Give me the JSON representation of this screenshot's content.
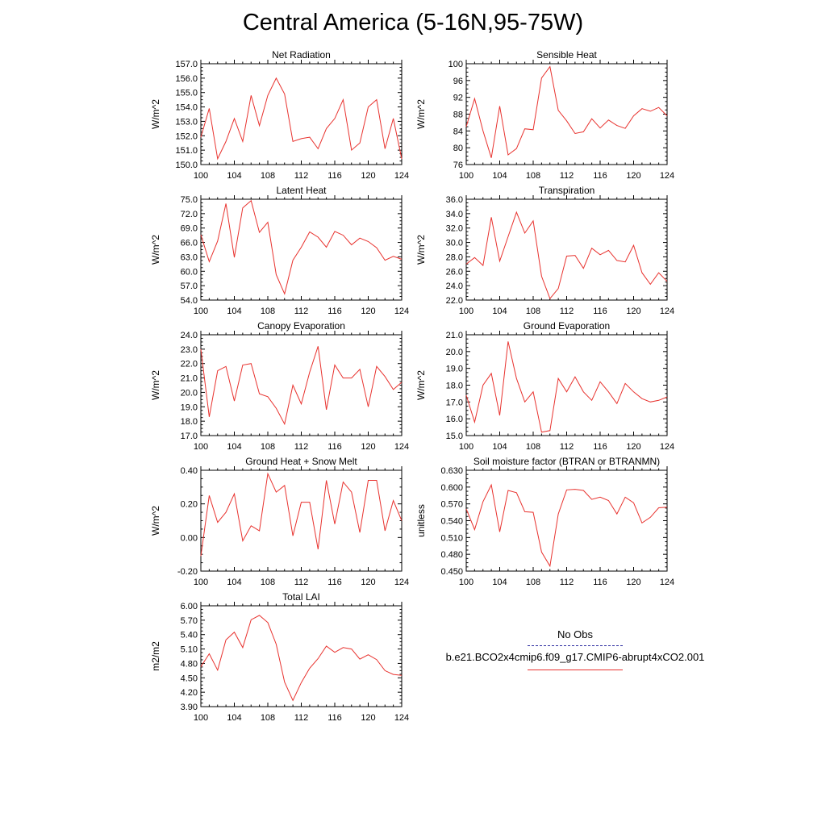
{
  "page": {
    "title": "Central America (5-16N,95-75W)"
  },
  "legend": {
    "obs_label": "No Obs",
    "case_label": "b.e21.BCO2x4cmip6.f09_g17.CMIP6-abrupt4xCO2.001",
    "case_color": "#e8322e",
    "obs_color": "#2a2aa0"
  },
  "chart_data": [
    {
      "type": "line",
      "title": "Net Radiation",
      "ylabel": "W/m^2",
      "xlabel": "",
      "xlim": [
        100,
        124
      ],
      "ylim": [
        150,
        157
      ],
      "xticks": [
        "100",
        "104",
        "108",
        "112",
        "116",
        "120",
        "124"
      ],
      "yticks": [
        "150.0",
        "151.0",
        "152.0",
        "153.0",
        "154.0",
        "155.0",
        "156.0",
        "157.0"
      ],
      "series": [
        {
          "name": "b.e21.BCO2x4cmip6.f09_g17.CMIP6-abrupt4xCO2.001",
          "x": [
            100,
            101,
            102,
            103,
            104,
            105,
            106,
            107,
            108,
            109,
            110,
            111,
            112,
            113,
            114,
            115,
            116,
            117,
            118,
            119,
            120,
            121,
            122,
            123,
            124
          ],
          "values": [
            151.9,
            153.9,
            150.4,
            151.6,
            153.2,
            151.6,
            154.8,
            152.7,
            154.8,
            156.0,
            154.9,
            151.6,
            151.8,
            151.9,
            151.1,
            152.5,
            153.2,
            154.5,
            151.0,
            151.5,
            154.0,
            154.5,
            151.1,
            153.2,
            150.4
          ]
        }
      ]
    },
    {
      "type": "line",
      "title": "Sensible Heat",
      "ylabel": "W/m^2",
      "xlabel": "",
      "xlim": [
        100,
        124
      ],
      "ylim": [
        76,
        100
      ],
      "xticks": [
        "100",
        "104",
        "108",
        "112",
        "116",
        "120",
        "124"
      ],
      "yticks": [
        "76",
        "80",
        "84",
        "88",
        "92",
        "96",
        "100"
      ],
      "series": [
        {
          "name": "b.e21.BCO2x4cmip6.f09_g17.CMIP6-abrupt4xCO2.001",
          "x": [
            100,
            101,
            102,
            103,
            104,
            105,
            106,
            107,
            108,
            109,
            110,
            111,
            112,
            113,
            114,
            115,
            116,
            117,
            118,
            119,
            120,
            121,
            122,
            123,
            124
          ],
          "values": [
            85.0,
            91.7,
            84.0,
            77.6,
            89.9,
            78.3,
            79.8,
            84.5,
            84.3,
            96.6,
            99.3,
            88.9,
            86.4,
            83.4,
            83.8,
            86.9,
            84.7,
            86.6,
            85.3,
            84.6,
            87.6,
            89.3,
            88.7,
            89.6,
            87.6
          ]
        }
      ]
    },
    {
      "type": "line",
      "title": "Latent Heat",
      "ylabel": "W/m^2",
      "xlabel": "",
      "xlim": [
        100,
        124
      ],
      "ylim": [
        54,
        75
      ],
      "xticks": [
        "100",
        "104",
        "108",
        "112",
        "116",
        "120",
        "124"
      ],
      "yticks": [
        "54.0",
        "57.0",
        "60.0",
        "63.0",
        "66.0",
        "69.0",
        "72.0",
        "75.0"
      ],
      "series": [
        {
          "name": "b.e21.BCO2x4cmip6.f09_g17.CMIP6-abrupt4xCO2.001",
          "x": [
            100,
            101,
            102,
            103,
            104,
            105,
            106,
            107,
            108,
            109,
            110,
            111,
            112,
            113,
            114,
            115,
            116,
            117,
            118,
            119,
            120,
            121,
            122,
            123,
            124
          ],
          "values": [
            67.6,
            62.0,
            66.3,
            74.1,
            62.9,
            73.2,
            74.7,
            68.1,
            70.2,
            59.3,
            55.3,
            62.3,
            65.0,
            68.2,
            67.1,
            65.0,
            68.3,
            67.5,
            65.5,
            66.9,
            66.2,
            64.9,
            62.3,
            63.1,
            62.5
          ]
        }
      ]
    },
    {
      "type": "line",
      "title": "Transpiration",
      "ylabel": "W/m^2",
      "xlabel": "",
      "xlim": [
        100,
        124
      ],
      "ylim": [
        22,
        36
      ],
      "xticks": [
        "100",
        "104",
        "108",
        "112",
        "116",
        "120",
        "124"
      ],
      "yticks": [
        "22.0",
        "24.0",
        "26.0",
        "28.0",
        "30.0",
        "32.0",
        "34.0",
        "36.0"
      ],
      "series": [
        {
          "name": "b.e21.BCO2x4cmip6.f09_g17.CMIP6-abrupt4xCO2.001",
          "x": [
            100,
            101,
            102,
            103,
            104,
            105,
            106,
            107,
            108,
            109,
            110,
            111,
            112,
            113,
            114,
            115,
            116,
            117,
            118,
            119,
            120,
            121,
            122,
            123,
            124
          ],
          "values": [
            27.0,
            27.9,
            26.8,
            33.5,
            27.4,
            30.8,
            34.2,
            31.3,
            33.0,
            25.3,
            22.2,
            23.6,
            28.1,
            28.2,
            26.4,
            29.2,
            28.3,
            28.9,
            27.5,
            27.3,
            29.6,
            25.8,
            24.2,
            25.8,
            24.6
          ]
        }
      ]
    },
    {
      "type": "line",
      "title": "Canopy Evaporation",
      "ylabel": "W/m^2",
      "xlabel": "",
      "xlim": [
        100,
        124
      ],
      "ylim": [
        17,
        24
      ],
      "xticks": [
        "100",
        "104",
        "108",
        "112",
        "116",
        "120",
        "124"
      ],
      "yticks": [
        "17.0",
        "18.0",
        "19.0",
        "20.0",
        "21.0",
        "22.0",
        "23.0",
        "24.0"
      ],
      "series": [
        {
          "name": "b.e21.BCO2x4cmip6.f09_g17.CMIP6-abrupt4xCO2.001",
          "x": [
            100,
            101,
            102,
            103,
            104,
            105,
            106,
            107,
            108,
            109,
            110,
            111,
            112,
            113,
            114,
            115,
            116,
            117,
            118,
            119,
            120,
            121,
            122,
            123,
            124
          ],
          "values": [
            23.0,
            18.3,
            21.5,
            21.8,
            19.4,
            21.9,
            22.0,
            19.9,
            19.7,
            18.9,
            17.8,
            20.5,
            19.2,
            21.4,
            23.2,
            18.8,
            21.9,
            21.0,
            21.0,
            21.6,
            19.0,
            21.8,
            21.1,
            20.2,
            20.7
          ]
        }
      ]
    },
    {
      "type": "line",
      "title": "Ground Evaporation",
      "ylabel": "W/m^2",
      "xlabel": "",
      "xlim": [
        100,
        124
      ],
      "ylim": [
        15,
        21
      ],
      "xticks": [
        "100",
        "104",
        "108",
        "112",
        "116",
        "120",
        "124"
      ],
      "yticks": [
        "15.0",
        "16.0",
        "17.0",
        "18.0",
        "19.0",
        "20.0",
        "21.0"
      ],
      "series": [
        {
          "name": "b.e21.BCO2x4cmip6.f09_g17.CMIP6-abrupt4xCO2.001",
          "x": [
            100,
            101,
            102,
            103,
            104,
            105,
            106,
            107,
            108,
            109,
            110,
            111,
            112,
            113,
            114,
            115,
            116,
            117,
            118,
            119,
            120,
            121,
            122,
            123,
            124
          ],
          "values": [
            17.4,
            15.8,
            18.0,
            18.7,
            16.2,
            20.6,
            18.4,
            17.0,
            17.6,
            15.2,
            15.3,
            18.4,
            17.6,
            18.5,
            17.6,
            17.1,
            18.2,
            17.6,
            16.9,
            18.1,
            17.6,
            17.2,
            17.0,
            17.1,
            17.3
          ]
        }
      ]
    },
    {
      "type": "line",
      "title": "Ground Heat + Snow Melt",
      "ylabel": "W/m^2",
      "xlabel": "",
      "xlim": [
        100,
        124
      ],
      "ylim": [
        -0.2,
        0.4
      ],
      "xticks": [
        "100",
        "104",
        "108",
        "112",
        "116",
        "120",
        "124"
      ],
      "yticks": [
        "-0.20",
        "0.00",
        "0.20",
        "0.40"
      ],
      "series": [
        {
          "name": "b.e21.BCO2x4cmip6.f09_g17.CMIP6-abrupt4xCO2.001",
          "x": [
            100,
            101,
            102,
            103,
            104,
            105,
            106,
            107,
            108,
            109,
            110,
            111,
            112,
            113,
            114,
            115,
            116,
            117,
            118,
            119,
            120,
            121,
            122,
            123,
            124
          ],
          "values": [
            -0.11,
            0.25,
            0.09,
            0.15,
            0.26,
            -0.02,
            0.07,
            0.04,
            0.38,
            0.27,
            0.31,
            0.01,
            0.21,
            0.21,
            -0.07,
            0.34,
            0.08,
            0.33,
            0.27,
            0.03,
            0.34,
            0.34,
            0.04,
            0.22,
            0.1
          ]
        }
      ]
    },
    {
      "type": "line",
      "title": "Soil moisture factor (BTRAN or BTRANMN)",
      "ylabel": "unitless",
      "xlabel": "",
      "xlim": [
        100,
        124
      ],
      "ylim": [
        0.45,
        0.63
      ],
      "xticks": [
        "100",
        "104",
        "108",
        "112",
        "116",
        "120",
        "124"
      ],
      "yticks": [
        "0.450",
        "0.480",
        "0.510",
        "0.540",
        "0.570",
        "0.600",
        "0.630"
      ],
      "series": [
        {
          "name": "b.e21.BCO2x4cmip6.f09_g17.CMIP6-abrupt4xCO2.001",
          "x": [
            100,
            101,
            102,
            103,
            104,
            105,
            106,
            107,
            108,
            109,
            110,
            111,
            112,
            113,
            114,
            115,
            116,
            117,
            118,
            119,
            120,
            121,
            122,
            123,
            124
          ],
          "values": [
            0.561,
            0.524,
            0.574,
            0.604,
            0.52,
            0.594,
            0.59,
            0.556,
            0.555,
            0.484,
            0.459,
            0.552,
            0.595,
            0.596,
            0.594,
            0.578,
            0.582,
            0.576,
            0.552,
            0.582,
            0.572,
            0.536,
            0.546,
            0.563,
            0.564
          ]
        }
      ]
    },
    {
      "type": "line",
      "title": "Total LAI",
      "ylabel": "m2/m2",
      "xlabel": "",
      "xlim": [
        100,
        124
      ],
      "ylim": [
        3.9,
        6.0
      ],
      "xticks": [
        "100",
        "104",
        "108",
        "112",
        "116",
        "120",
        "124"
      ],
      "yticks": [
        "3.90",
        "4.20",
        "4.50",
        "4.80",
        "5.10",
        "5.40",
        "5.70",
        "6.00"
      ],
      "series": [
        {
          "name": "b.e21.BCO2x4cmip6.f09_g17.CMIP6-abrupt4xCO2.001",
          "x": [
            100,
            101,
            102,
            103,
            104,
            105,
            106,
            107,
            108,
            109,
            110,
            111,
            112,
            113,
            114,
            115,
            116,
            117,
            118,
            119,
            120,
            121,
            122,
            123,
            124
          ],
          "values": [
            4.73,
            5.0,
            4.66,
            5.29,
            5.45,
            5.13,
            5.71,
            5.8,
            5.65,
            5.2,
            4.41,
            4.03,
            4.4,
            4.7,
            4.9,
            5.16,
            5.03,
            5.13,
            5.1,
            4.89,
            4.98,
            4.88,
            4.65,
            4.57,
            4.55
          ]
        }
      ]
    }
  ]
}
